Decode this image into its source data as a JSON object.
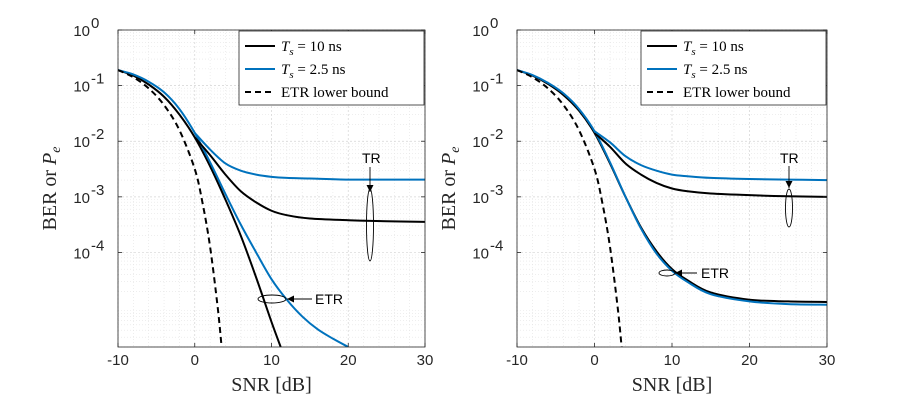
{
  "chart_data": [
    {
      "type": "line",
      "panel": "left",
      "xlabel": "SNR [dB]",
      "ylabel": "BER or P_e",
      "xlim": [
        -10,
        30
      ],
      "ylim_log10": [
        -5.7,
        0
      ],
      "yscale": "log",
      "grid": true,
      "minor_grid": true,
      "legend_position": "top-right",
      "xticks": [
        -10,
        0,
        10,
        20,
        30
      ],
      "xtick_labels": [
        "-10",
        "0",
        "10",
        "20",
        "30"
      ],
      "yticks_log10": [
        0,
        -1,
        -2,
        -3,
        -4
      ],
      "ytick_labels": [
        {
          "base": "10",
          "exp": "0"
        },
        {
          "base": "10",
          "exp": "-1"
        },
        {
          "base": "10",
          "exp": "-2"
        },
        {
          "base": "10",
          "exp": "-3"
        },
        {
          "base": "10",
          "exp": "-4"
        }
      ],
      "series": [
        {
          "name": "T_s = 10 ns",
          "legend_main": "T",
          "legend_sub": "s",
          "legend_rest": " = 10 ns",
          "color": "#000000",
          "dash": "solid",
          "x": [
            -10,
            -8,
            -6,
            -4,
            -2,
            0,
            2,
            4,
            6,
            8,
            10,
            11.2
          ],
          "y_log10": [
            -0.72,
            -0.82,
            -0.98,
            -1.2,
            -1.52,
            -1.93,
            -2.45,
            -3.05,
            -3.7,
            -4.45,
            -5.25,
            -5.7
          ]
        },
        {
          "name": "T_s = 2.5 ns",
          "legend_main": "T",
          "legend_sub": "s",
          "legend_rest": " = 2.5 ns",
          "color": "#0072BD",
          "dash": "solid",
          "x": [
            -10,
            -8,
            -6,
            -4,
            -2,
            0,
            2,
            4,
            6,
            8,
            10,
            12,
            14,
            16,
            18,
            20
          ],
          "y_log10": [
            -0.72,
            -0.8,
            -0.93,
            -1.12,
            -1.42,
            -1.85,
            -2.38,
            -2.95,
            -3.5,
            -4.0,
            -4.48,
            -4.85,
            -5.15,
            -5.38,
            -5.55,
            -5.7
          ]
        },
        {
          "name": "ETR lower bound",
          "legend_main": "ETR lower bound",
          "legend_sub": "",
          "legend_rest": "",
          "color": "#000000",
          "dash": "dashed",
          "x": [
            -10,
            -8,
            -6,
            -4,
            -2,
            0,
            1,
            2,
            3,
            3.5
          ],
          "y_log10": [
            -0.72,
            -0.85,
            -1.05,
            -1.35,
            -1.8,
            -2.5,
            -3.1,
            -3.9,
            -5.0,
            -5.7
          ]
        },
        {
          "name": "TR, T_s = 10 ns",
          "color": "#000000",
          "dash": "solid",
          "x": [
            0,
            2,
            4,
            6,
            8,
            10,
            12,
            15,
            20,
            25,
            30
          ],
          "y_log10": [
            -1.93,
            -2.25,
            -2.6,
            -2.9,
            -3.1,
            -3.25,
            -3.33,
            -3.39,
            -3.42,
            -3.44,
            -3.45
          ]
        },
        {
          "name": "TR, T_s = 2.5 ns",
          "color": "#0072BD",
          "dash": "solid",
          "x": [
            0,
            2,
            4,
            6,
            8,
            10,
            12,
            15,
            20,
            25,
            30
          ],
          "y_log10": [
            -1.85,
            -2.15,
            -2.4,
            -2.53,
            -2.6,
            -2.64,
            -2.66,
            -2.67,
            -2.69,
            -2.69,
            -2.69
          ]
        }
      ],
      "annotations": [
        {
          "text": "TR",
          "x": 23,
          "y_log10": -2.0
        },
        {
          "text": "ETR",
          "x": 16.5,
          "y_log10": -4.21
        }
      ]
    },
    {
      "type": "line",
      "panel": "right",
      "xlabel": "SNR [dB]",
      "ylabel": "BER or P_e",
      "xlim": [
        -10,
        30
      ],
      "ylim_log10": [
        -5.7,
        0
      ],
      "yscale": "log",
      "grid": true,
      "minor_grid": true,
      "legend_position": "top-right",
      "xticks": [
        -10,
        0,
        10,
        20,
        30
      ],
      "xtick_labels": [
        "-10",
        "0",
        "10",
        "20",
        "30"
      ],
      "yticks_log10": [
        0,
        -1,
        -2,
        -3,
        -4
      ],
      "ytick_labels": [
        {
          "base": "10",
          "exp": "0"
        },
        {
          "base": "10",
          "exp": "-1"
        },
        {
          "base": "10",
          "exp": "-2"
        },
        {
          "base": "10",
          "exp": "-3"
        },
        {
          "base": "10",
          "exp": "-4"
        }
      ],
      "series": [
        {
          "name": "T_s = 10 ns",
          "legend_main": "T",
          "legend_sub": "s",
          "legend_rest": " = 10 ns",
          "color": "#000000",
          "dash": "solid",
          "x": [
            -10,
            -8,
            -6,
            -4,
            -2,
            0,
            2,
            4,
            6,
            8,
            10,
            12,
            15,
            20,
            25,
            30
          ],
          "y_log10": [
            -0.72,
            -0.82,
            -0.97,
            -1.17,
            -1.45,
            -1.85,
            -2.4,
            -3.0,
            -3.55,
            -3.98,
            -4.3,
            -4.5,
            -4.72,
            -4.85,
            -4.88,
            -4.89
          ]
        },
        {
          "name": "T_s = 2.5 ns",
          "legend_main": "T",
          "legend_sub": "s",
          "legend_rest": " = 2.5 ns",
          "color": "#0072BD",
          "dash": "solid",
          "x": [
            -10,
            -8,
            -6,
            -4,
            -2,
            0,
            2,
            4,
            6,
            8,
            10,
            12,
            15,
            20,
            25,
            30
          ],
          "y_log10": [
            -0.72,
            -0.81,
            -0.95,
            -1.14,
            -1.42,
            -1.82,
            -2.38,
            -3.0,
            -3.57,
            -4.02,
            -4.33,
            -4.53,
            -4.75,
            -4.88,
            -4.93,
            -4.94
          ]
        },
        {
          "name": "ETR lower bound",
          "legend_main": "ETR lower bound",
          "legend_sub": "",
          "legend_rest": "",
          "color": "#000000",
          "dash": "dashed",
          "x": [
            -10,
            -8,
            -6,
            -4,
            -2,
            0,
            1,
            2,
            3,
            3.5
          ],
          "y_log10": [
            -0.72,
            -0.85,
            -1.05,
            -1.35,
            -1.8,
            -2.5,
            -3.1,
            -3.9,
            -5.0,
            -5.7
          ]
        },
        {
          "name": "TR, T_s = 10 ns",
          "color": "#000000",
          "dash": "solid",
          "x": [
            0,
            2,
            4,
            6,
            8,
            10,
            12,
            15,
            20,
            25,
            30
          ],
          "y_log10": [
            -1.85,
            -2.1,
            -2.4,
            -2.6,
            -2.75,
            -2.85,
            -2.9,
            -2.94,
            -2.97,
            -2.99,
            -3.0
          ]
        },
        {
          "name": "TR, T_s = 2.5 ns",
          "color": "#0072BD",
          "dash": "solid",
          "x": [
            0,
            2,
            4,
            6,
            8,
            10,
            12,
            15,
            20,
            25,
            30
          ],
          "y_log10": [
            -1.82,
            -2.02,
            -2.27,
            -2.43,
            -2.53,
            -2.6,
            -2.63,
            -2.66,
            -2.68,
            -2.69,
            -2.7
          ]
        }
      ],
      "annotations": [
        {
          "text": "TR",
          "x": 25,
          "y_log10": -2.0
        },
        {
          "text": "ETR",
          "x": 12.5,
          "y_log10": -3.82
        }
      ]
    }
  ]
}
